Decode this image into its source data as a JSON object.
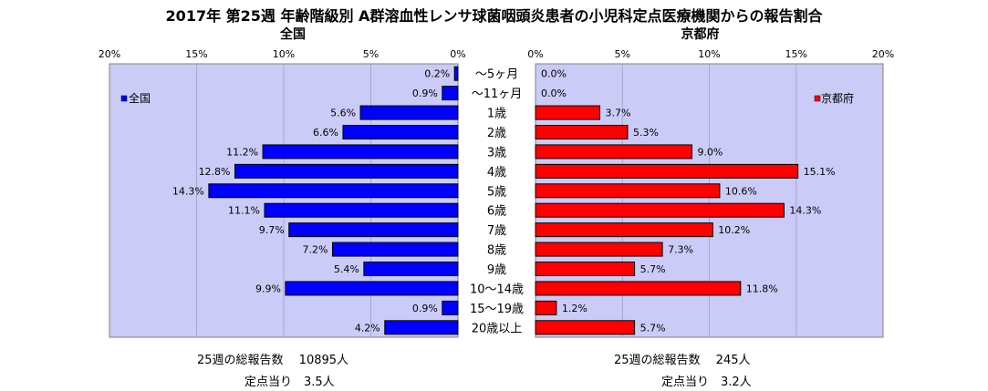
{
  "chart_data": {
    "type": "bar",
    "title": "2017年 第25週 年齢階級別 A群溶血性レンサ球菌咽頭炎患者の小児科定点医療機関からの報告割合",
    "categories": [
      "～5ヶ月",
      "～11ヶ月",
      "1歳",
      "2歳",
      "3歳",
      "4歳",
      "5歳",
      "6歳",
      "7歳",
      "8歳",
      "9歳",
      "10～14歳",
      "15～19歳",
      "20歳以上"
    ],
    "xlim": [
      0,
      20
    ],
    "ticks": [
      "0%",
      "5%",
      "10%",
      "15%",
      "20%"
    ],
    "grid": true,
    "series": [
      {
        "name": "全国",
        "panel_label": "全国",
        "legend_position": "top-left",
        "color": "#0000ff",
        "values": [
          0.2,
          0.9,
          5.6,
          6.6,
          11.2,
          12.8,
          14.3,
          11.1,
          9.7,
          7.2,
          5.4,
          9.9,
          0.9,
          4.2
        ],
        "labels": [
          "0.2%",
          "0.9%",
          "5.6%",
          "6.6%",
          "11.2%",
          "12.8%",
          "14.3%",
          "11.1%",
          "9.7%",
          "7.2%",
          "5.4%",
          "9.9%",
          "0.9%",
          "4.2%"
        ]
      },
      {
        "name": "京都府",
        "panel_label": "京都府",
        "legend_position": "top-right",
        "color": "#ff0000",
        "values": [
          0.0,
          0.0,
          3.7,
          5.3,
          9.0,
          15.1,
          10.6,
          14.3,
          10.2,
          7.3,
          5.7,
          11.8,
          1.2,
          5.7
        ],
        "labels": [
          "0.0%",
          "0.0%",
          "3.7%",
          "5.3%",
          "9.0%",
          "15.1%",
          "10.6%",
          "14.3%",
          "10.2%",
          "7.3%",
          "5.7%",
          "11.8%",
          "1.2%",
          "5.7%"
        ]
      }
    ]
  },
  "footer": {
    "national_total": "25週の総報告数　 10895人",
    "national_per_site": "定点当り　3.5人",
    "kyoto_total": "25週の総報告数　 245人",
    "kyoto_per_site": "定点当り　3.2人"
  }
}
